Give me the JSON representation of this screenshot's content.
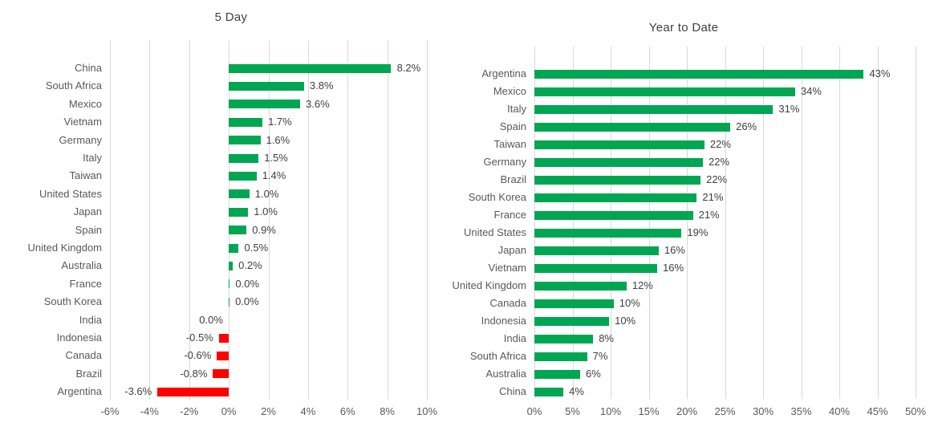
{
  "colors": {
    "positive_bar": "#00a651",
    "negative_bar": "#ff0000",
    "gridline": "#d9d9d9",
    "category_text": "#595959",
    "value_text": "#404040",
    "title_text": "#404040",
    "background": "#ffffff"
  },
  "chart_data": [
    {
      "type": "bar",
      "orientation": "horizontal",
      "title": "5 Day",
      "categories": [
        "China",
        "South Africa",
        "Mexico",
        "Vietnam",
        "Germany",
        "Italy",
        "Taiwan",
        "United States",
        "Japan",
        "Spain",
        "United Kingdom",
        "Australia",
        "France",
        "South Korea",
        "India",
        "Indonesia",
        "Canada",
        "Brazil",
        "Argentina"
      ],
      "values": [
        8.2,
        3.8,
        3.6,
        1.7,
        1.6,
        1.5,
        1.4,
        1.04,
        0.98,
        0.9,
        0.5,
        0.2,
        0.05,
        0.04,
        -0.01,
        -0.5,
        -0.6,
        -0.8,
        -3.6
      ],
      "value_labels": [
        "8.2%",
        "3.8%",
        "3.6%",
        "1.7%",
        "1.6%",
        "1.5%",
        "1.4%",
        "1.0%",
        "1.0%",
        "0.9%",
        "0.5%",
        "0.2%",
        "0.0%",
        "0.0%",
        "0.0%",
        "-0.5%",
        "-0.6%",
        "-0.8%",
        "-3.6%"
      ],
      "xlim": [
        -6,
        10
      ],
      "xtick_values": [
        -6,
        -4,
        -2,
        0,
        2,
        4,
        6,
        8,
        10
      ],
      "xticks": [
        "-6%",
        "-4%",
        "-2%",
        "0%",
        "2%",
        "4%",
        "6%",
        "8%",
        "10%"
      ],
      "grid": "vertical-only",
      "legend": "none"
    },
    {
      "type": "bar",
      "orientation": "horizontal",
      "title": "Year to Date",
      "categories": [
        "Argentina",
        "Mexico",
        "Italy",
        "Spain",
        "Taiwan",
        "Germany",
        "Brazil",
        "South Korea",
        "France",
        "United States",
        "Japan",
        "Vietnam",
        "United Kingdom",
        "Canada",
        "Indonesia",
        "India",
        "South Africa",
        "Australia",
        "China"
      ],
      "values": [
        43.2,
        34.2,
        31.3,
        25.7,
        22.3,
        22.1,
        21.8,
        21.3,
        20.8,
        19.3,
        16.3,
        16.1,
        12.1,
        10.4,
        9.8,
        7.7,
        6.9,
        6.0,
        3.8
      ],
      "value_labels": [
        "43%",
        "34%",
        "31%",
        "26%",
        "22%",
        "22%",
        "22%",
        "21%",
        "21%",
        "19%",
        "16%",
        "16%",
        "12%",
        "10%",
        "10%",
        "8%",
        "7%",
        "6%",
        "4%"
      ],
      "xlim": [
        0,
        50
      ],
      "xtick_values": [
        0,
        5,
        10,
        15,
        20,
        25,
        30,
        35,
        40,
        45,
        50
      ],
      "xticks": [
        "0%",
        "5%",
        "10%",
        "15%",
        "20%",
        "25%",
        "30%",
        "35%",
        "40%",
        "45%",
        "50%"
      ],
      "grid": "vertical-only",
      "legend": "none"
    }
  ]
}
